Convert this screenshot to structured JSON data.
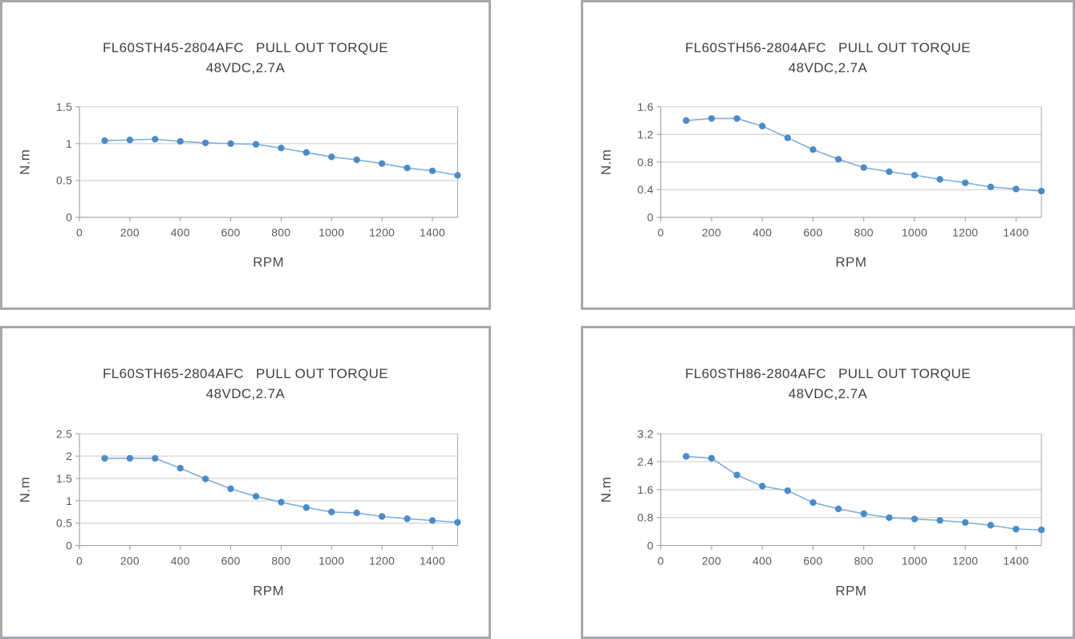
{
  "page": {
    "background": "#ffffff",
    "description": "Four pull-out torque curve charts for FL60STH stepper motors"
  },
  "colors": {
    "marker": "#4b8bc6",
    "line": "#7facdb",
    "grid": "#c9c9c9",
    "axis": "#979797",
    "plot_border": "#a8a8a8",
    "panel_border": "#a7a7ad",
    "title_text": "#3f3f3f",
    "tick_text": "#595959"
  },
  "chart_data": [
    {
      "type": "line",
      "title_model": "FL60STH45-2804AFC",
      "title_text": "PULL OUT TORQUE",
      "subtitle": "48VDC,2.7A",
      "xlabel": "RPM",
      "ylabel": "N.m",
      "legend": "none",
      "grid": "horizontal",
      "x": [
        100,
        200,
        300,
        400,
        500,
        600,
        700,
        800,
        900,
        1000,
        1100,
        1200,
        1300,
        1400,
        1500
      ],
      "values": [
        1.04,
        1.05,
        1.06,
        1.03,
        1.01,
        1.0,
        0.99,
        0.94,
        0.88,
        0.82,
        0.78,
        0.73,
        0.67,
        0.63,
        0.57
      ],
      "xlim": [
        0,
        1500
      ],
      "ylim": [
        0,
        1.5
      ],
      "xticks": [
        0,
        200,
        400,
        600,
        800,
        1000,
        1200,
        1400
      ],
      "yticks": [
        0,
        0.5,
        1,
        1.5
      ]
    },
    {
      "type": "line",
      "title_model": "FL60STH56-2804AFC",
      "title_text": "PULL OUT TORQUE",
      "subtitle": "48VDC,2.7A",
      "xlabel": "RPM",
      "ylabel": "N.m",
      "legend": "none",
      "grid": "horizontal",
      "x": [
        100,
        200,
        300,
        400,
        500,
        600,
        700,
        800,
        900,
        1000,
        1100,
        1200,
        1300,
        1400,
        1500
      ],
      "values": [
        1.4,
        1.43,
        1.43,
        1.32,
        1.15,
        0.98,
        0.84,
        0.72,
        0.66,
        0.61,
        0.55,
        0.5,
        0.44,
        0.41,
        0.38
      ],
      "xlim": [
        0,
        1500
      ],
      "ylim": [
        0,
        1.6
      ],
      "xticks": [
        0,
        200,
        400,
        600,
        800,
        1000,
        1200,
        1400
      ],
      "yticks": [
        0,
        0.4,
        0.8,
        1.2,
        1.6
      ]
    },
    {
      "type": "line",
      "title_model": "FL60STH65-2804AFC",
      "title_text": "PULL OUT TORQUE",
      "subtitle": "48VDC,2.7A",
      "xlabel": "RPM",
      "ylabel": "N.m",
      "legend": "none",
      "grid": "horizontal",
      "x": [
        100,
        200,
        300,
        400,
        500,
        600,
        700,
        800,
        900,
        1000,
        1100,
        1200,
        1300,
        1400,
        1500
      ],
      "values": [
        1.95,
        1.95,
        1.95,
        1.73,
        1.49,
        1.27,
        1.1,
        0.97,
        0.85,
        0.75,
        0.73,
        0.65,
        0.6,
        0.56,
        0.52
      ],
      "xlim": [
        0,
        1500
      ],
      "ylim": [
        0,
        2.5
      ],
      "xticks": [
        0,
        200,
        400,
        600,
        800,
        1000,
        1200,
        1400
      ],
      "yticks": [
        0,
        0.5,
        1,
        1.5,
        2,
        2.5
      ]
    },
    {
      "type": "line",
      "title_model": "FL60STH86-2804AFC",
      "title_text": "PULL OUT TORQUE",
      "subtitle": "48VDC,2.7A",
      "xlabel": "RPM",
      "ylabel": "N.m",
      "legend": "none",
      "grid": "horizontal",
      "x": [
        100,
        200,
        300,
        400,
        500,
        600,
        700,
        800,
        900,
        1000,
        1100,
        1200,
        1300,
        1400,
        1500
      ],
      "values": [
        2.55,
        2.5,
        2.02,
        1.7,
        1.57,
        1.23,
        1.05,
        0.91,
        0.8,
        0.76,
        0.72,
        0.66,
        0.58,
        0.47,
        0.45
      ],
      "xlim": [
        0,
        1500
      ],
      "ylim": [
        0,
        3.2
      ],
      "xticks": [
        0,
        200,
        400,
        600,
        800,
        1000,
        1200,
        1400
      ],
      "yticks": [
        0,
        0.8,
        1.6,
        2.4,
        3.2
      ]
    }
  ]
}
